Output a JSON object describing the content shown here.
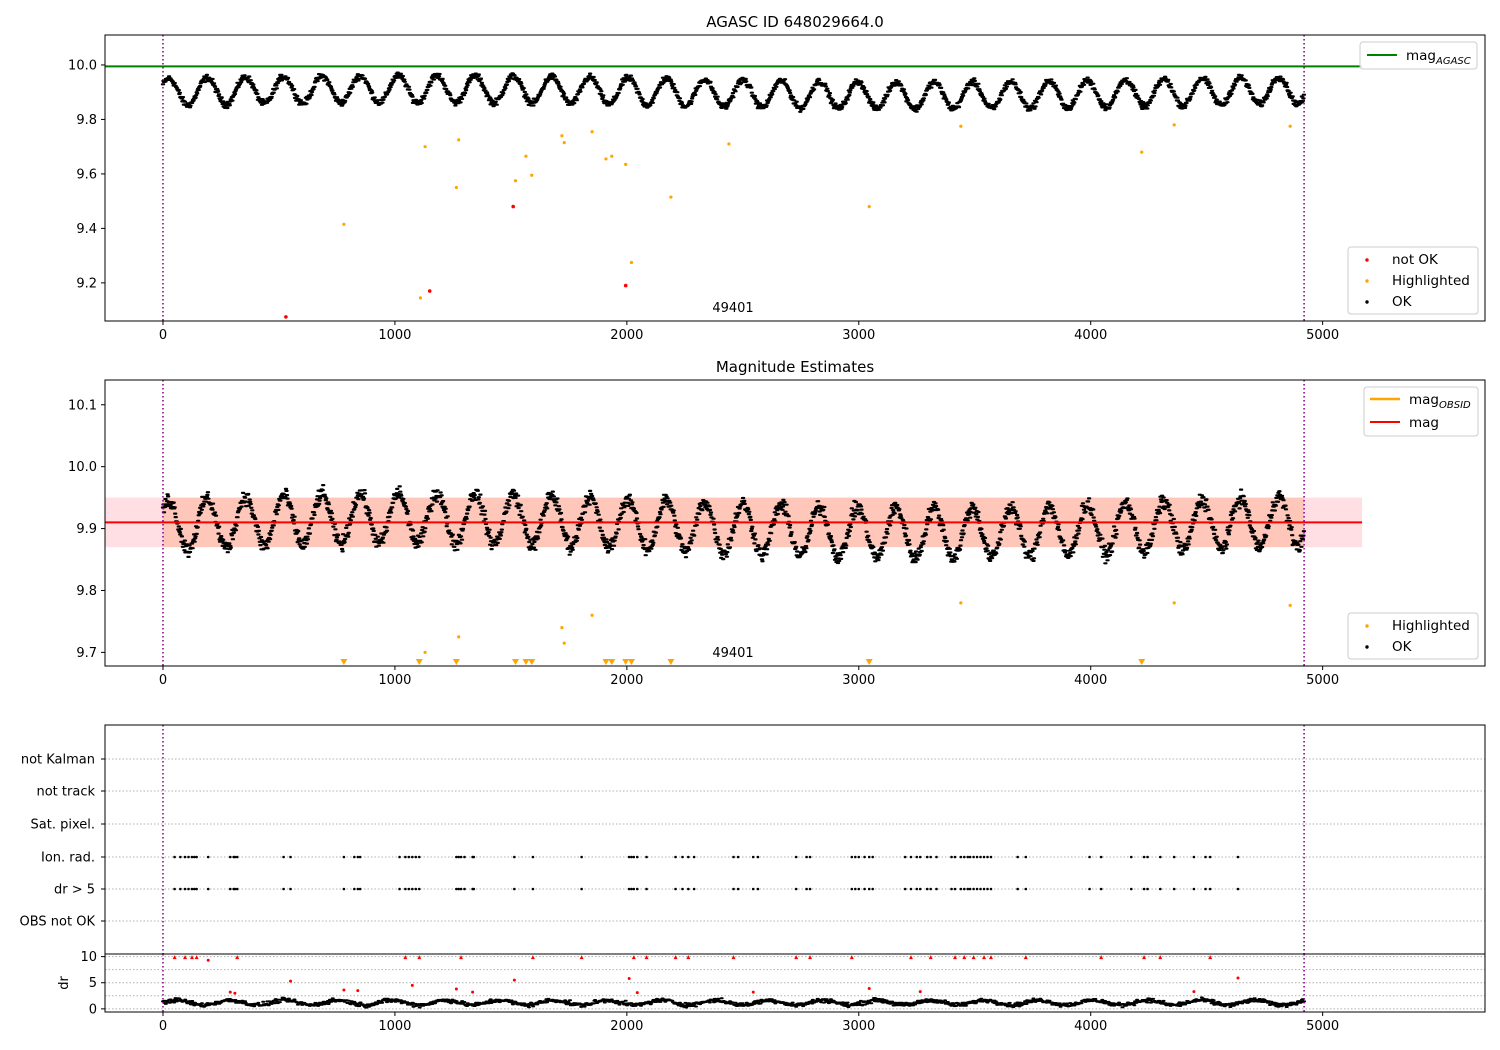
{
  "chart_data": [
    {
      "type": "scatter",
      "title": "AGASC ID 648029664.0",
      "xlabel": "",
      "ylabel": "",
      "xlim": [
        -250,
        5700
      ],
      "ylim": [
        9.06,
        10.11
      ],
      "xticks": [
        0,
        1000,
        2000,
        3000,
        4000,
        5000
      ],
      "x_tick_labels": [
        "0",
        "1000",
        "2000",
        "3000",
        "4000",
        "5000"
      ],
      "yticks": [
        9.2,
        9.4,
        9.6,
        9.8,
        10.0
      ],
      "y_tick_labels": [
        "9.2",
        "9.4",
        "9.6",
        "9.8",
        "10.0"
      ],
      "vlines": [
        0,
        4920
      ],
      "vline_color": "#800080",
      "hlines": [
        {
          "y": 9.995,
          "color": "#008000",
          "x_end": 5170
        }
      ],
      "ok_band": {
        "center": 9.9,
        "amplitude": 0.055,
        "period": 165,
        "x_range": [
          0,
          4920
        ],
        "color": "#000000"
      },
      "series": [
        {
          "name": "not OK",
          "color": "#ff0000",
          "x": [
            530,
            1150,
            1510,
            1995
          ],
          "y": [
            9.075,
            9.17,
            9.48,
            9.19
          ]
        },
        {
          "name": "Highlighted",
          "color": "#ffa500",
          "x": [
            780,
            1110,
            1130,
            1265,
            1275,
            1520,
            1565,
            1590,
            1720,
            1730,
            1850,
            1910,
            1935,
            1995,
            2020,
            2190,
            2440,
            3045,
            3440,
            4220,
            4360,
            4860
          ],
          "y": [
            9.415,
            9.145,
            9.7,
            9.55,
            9.725,
            9.575,
            9.665,
            9.595,
            9.74,
            9.715,
            9.755,
            9.655,
            9.665,
            9.635,
            9.275,
            9.515,
            9.71,
            9.48,
            9.775,
            9.68,
            9.78,
            9.775
          ]
        },
        {
          "name": "OK",
          "color": "#000000"
        }
      ],
      "legend_lines": [
        {
          "label": "mag",
          "sub": "AGASC",
          "color": "#008000"
        }
      ],
      "legend_markers": [
        {
          "label": "not OK",
          "color": "#ff0000"
        },
        {
          "label": "Highlighted",
          "color": "#ffa500"
        },
        {
          "label": "OK",
          "color": "#000000"
        }
      ],
      "annotations": [
        {
          "text": "49401",
          "x": 2460,
          "y": 9.095
        }
      ]
    },
    {
      "type": "scatter",
      "title": "Magnitude Estimates",
      "xlabel": "",
      "ylabel": "",
      "xlim": [
        -250,
        5700
      ],
      "ylim": [
        9.678,
        10.14
      ],
      "xticks": [
        0,
        1000,
        2000,
        3000,
        4000,
        5000
      ],
      "x_tick_labels": [
        "0",
        "1000",
        "2000",
        "3000",
        "4000",
        "5000"
      ],
      "yticks": [
        9.7,
        9.8,
        9.9,
        10.0,
        10.1
      ],
      "y_tick_labels": [
        "9.7",
        "9.8",
        "9.9",
        "10.0",
        "10.1"
      ],
      "vlines": [
        0,
        4920
      ],
      "vline_color": "#800080",
      "band": {
        "y0": 9.87,
        "y1": 9.95,
        "x_end": 5170,
        "color": "#ff8040"
      },
      "mag_line": {
        "y": 9.91,
        "color": "#ff0000",
        "x_end": 5170
      },
      "ok_band": {
        "center": 9.905,
        "amplitude": 0.045,
        "period": 165,
        "x_range": [
          0,
          4920
        ],
        "color": "#000000"
      },
      "series": [
        {
          "name": "Highlighted",
          "color": "#ffa500",
          "x": [
            1130,
            1275,
            1720,
            1730,
            1850,
            3440,
            4360,
            4860
          ],
          "y": [
            9.7,
            9.725,
            9.74,
            9.715,
            9.76,
            9.78,
            9.78,
            9.776
          ]
        },
        {
          "name": "OK",
          "color": "#000000"
        }
      ],
      "offscale_markers": {
        "color": "#ffa500",
        "x": [
          780,
          1105,
          1265,
          1520,
          1565,
          1590,
          1910,
          1935,
          1995,
          2020,
          2190,
          3045,
          4220
        ]
      },
      "legend_lines": [
        {
          "label": "mag",
          "sub": "OBSID",
          "color": "#ffa500"
        },
        {
          "label": "mag",
          "sub": "",
          "color": "#ff0000"
        }
      ],
      "legend_markers": [
        {
          "label": "Highlighted",
          "color": "#ffa500"
        },
        {
          "label": "OK",
          "color": "#000000"
        }
      ],
      "annotations": [
        {
          "text": "49401",
          "x": 2460,
          "y": 9.695
        }
      ]
    },
    {
      "type": "scatter",
      "title": "",
      "xlabel": "",
      "ylabel": "",
      "xlim": [
        -250,
        5700
      ],
      "categories": [
        "OBS not OK",
        "dr > 5",
        "Ion. rad.",
        "Sat. pixel.",
        "not track",
        "not Kalman"
      ],
      "flag_x": [
        50,
        75,
        95,
        110,
        125,
        135,
        145,
        195,
        290,
        305,
        310,
        320,
        520,
        550,
        780,
        825,
        840,
        850,
        1020,
        1045,
        1060,
        1075,
        1090,
        1105,
        1265,
        1275,
        1285,
        1300,
        1335,
        1340,
        1515,
        1595,
        1805,
        2010,
        2020,
        2030,
        2045,
        2085,
        2210,
        2240,
        2265,
        2290,
        2460,
        2480,
        2545,
        2565,
        2730,
        2775,
        2790,
        2970,
        2985,
        3000,
        3025,
        3045,
        3060,
        3200,
        3225,
        3250,
        3265,
        3295,
        3310,
        3335,
        3400,
        3415,
        3440,
        3455,
        3470,
        3480,
        3495,
        3510,
        3525,
        3540,
        3555,
        3570,
        3685,
        3720,
        3995,
        4045,
        4175,
        4230,
        4245,
        4300,
        4360,
        4445,
        4495,
        4515,
        4635
      ],
      "flag_rows": [
        "dr > 5",
        "Ion. rad."
      ],
      "grid": true
    },
    {
      "type": "scatter",
      "title": "",
      "xlabel": "",
      "ylabel": "dr",
      "xlim": [
        -250,
        5700
      ],
      "ylim": [
        -0.6,
        10.5
      ],
      "yticks": [
        0,
        5,
        10
      ],
      "y_tick_labels": [
        "0",
        "5",
        "10"
      ],
      "xticks": [
        0,
        1000,
        2000,
        3000,
        4000,
        5000
      ],
      "x_tick_labels": [
        "0",
        "1000",
        "2000",
        "3000",
        "4000",
        "5000"
      ],
      "vlines": [
        0,
        4920
      ],
      "vline_color": "#800080",
      "baseline": {
        "mean": 1.2,
        "x_range": [
          0,
          4920
        ],
        "color": "#000000"
      },
      "red_points": {
        "color": "#ff0000",
        "x": [
          50,
          95,
          125,
          145,
          195,
          290,
          310,
          320,
          550,
          780,
          840,
          1045,
          1075,
          1105,
          1265,
          1285,
          1335,
          1515,
          1595,
          1805,
          2010,
          2030,
          2045,
          2085,
          2210,
          2265,
          2460,
          2545,
          2730,
          2790,
          2970,
          3045,
          3225,
          3265,
          3310,
          3415,
          3455,
          3495,
          3540,
          3570,
          3720,
          4045,
          4230,
          4300,
          4445,
          4515,
          4635
        ],
        "y": [
          9.9,
          9.9,
          9.9,
          9.9,
          9.3,
          3.2,
          3.0,
          9.9,
          5.3,
          3.6,
          3.5,
          9.9,
          4.5,
          9.9,
          3.8,
          9.9,
          3.2,
          5.5,
          9.9,
          9.9,
          5.8,
          9.9,
          3.1,
          9.9,
          9.9,
          9.9,
          9.9,
          3.2,
          9.9,
          9.9,
          9.9,
          3.9,
          9.9,
          3.3,
          9.9,
          9.9,
          9.9,
          9.9,
          9.9,
          9.9,
          9.9,
          9.9,
          9.9,
          9.9,
          3.3,
          9.9,
          5.9
        ]
      }
    }
  ]
}
